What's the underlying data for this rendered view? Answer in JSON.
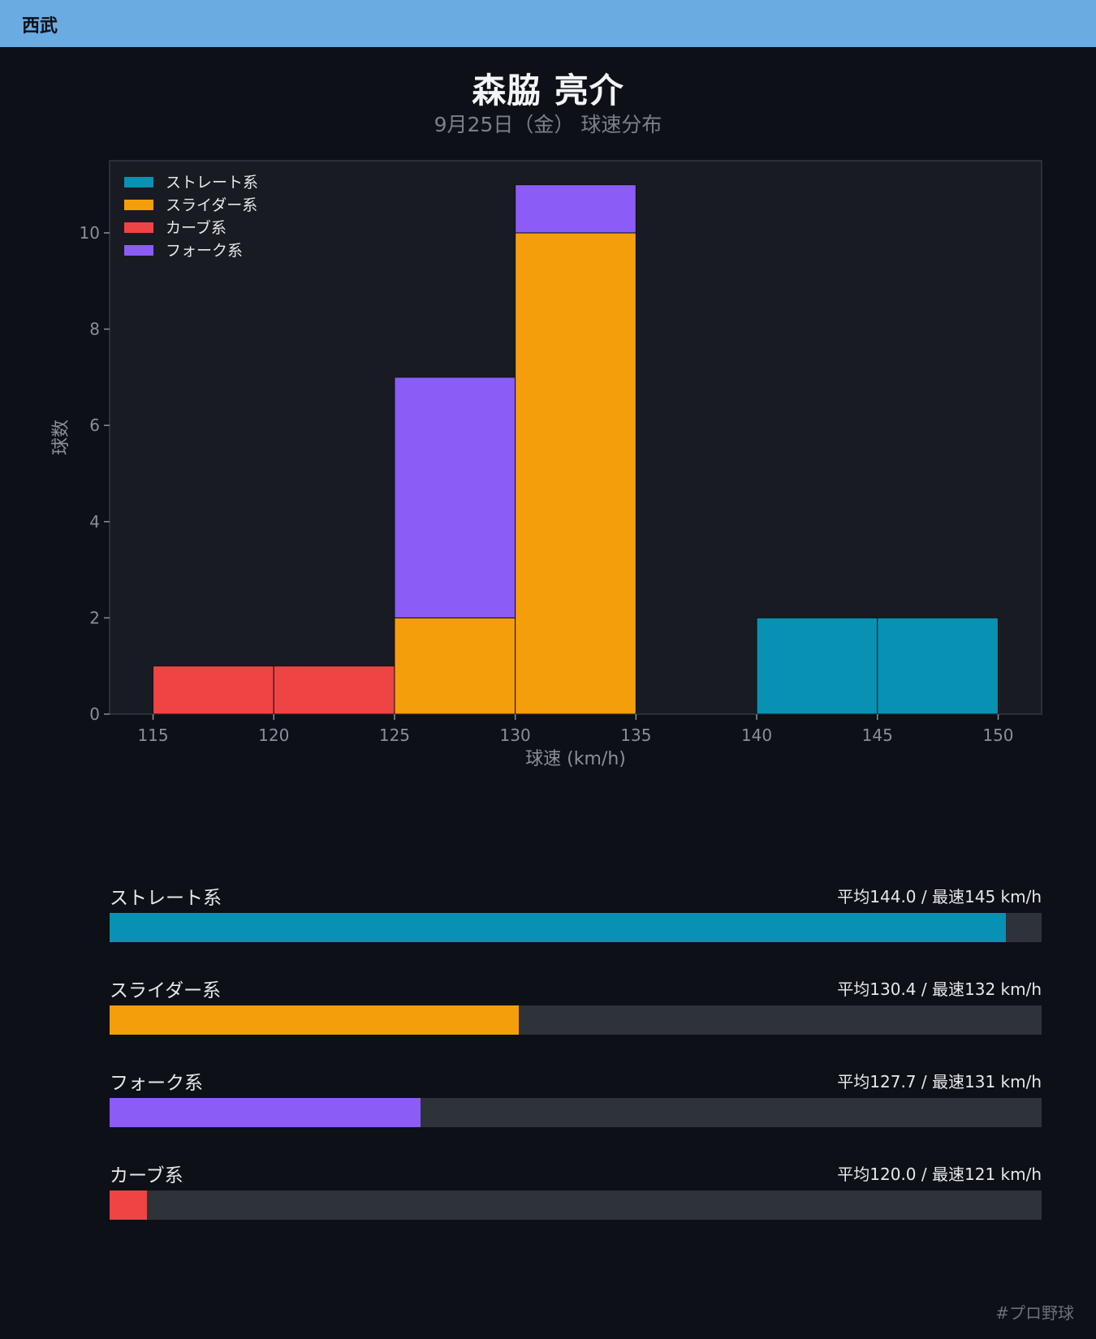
{
  "header": {
    "team": "西武"
  },
  "title": "森脇 亮介",
  "subtitle": "9月25日（金） 球速分布",
  "colors": {
    "straight": "#0891b2",
    "slider": "#f59e0b",
    "curve": "#ef4444",
    "fork": "#8b5cf6",
    "plot_bg": "#181b22",
    "page_bg": "#0d1017",
    "track": "#2e3239",
    "header": "#6aabe2"
  },
  "chart_data": {
    "type": "bar",
    "stacked": true,
    "title": "",
    "xlabel": "球速 (km/h)",
    "ylabel": "球数",
    "xlim": [
      113.2,
      151.8
    ],
    "ylim": [
      0,
      11.5
    ],
    "xticks": [
      115,
      120,
      125,
      130,
      135,
      140,
      145,
      150
    ],
    "yticks": [
      0,
      2,
      4,
      6,
      8,
      10
    ],
    "bins": [
      [
        115,
        120
      ],
      [
        120,
        125
      ],
      [
        125,
        130
      ],
      [
        130,
        135
      ],
      [
        135,
        140
      ],
      [
        140,
        145
      ],
      [
        145,
        150
      ]
    ],
    "legend_position": "top-left",
    "series": [
      {
        "name": "ストレート系",
        "color": "#0891b2",
        "values": [
          0,
          0,
          0,
          0,
          0,
          2,
          2
        ]
      },
      {
        "name": "スライダー系",
        "color": "#f59e0b",
        "values": [
          0,
          0,
          2,
          10,
          0,
          0,
          0
        ]
      },
      {
        "name": "カーブ系",
        "color": "#ef4444",
        "values": [
          1,
          1,
          0,
          0,
          0,
          0,
          0
        ]
      },
      {
        "name": "フォーク系",
        "color": "#8b5cf6",
        "values": [
          0,
          0,
          5,
          1,
          0,
          0,
          0
        ]
      }
    ],
    "legend_order": [
      "ストレート系",
      "スライダー系",
      "カーブ系",
      "フォーク系"
    ]
  },
  "pitch_types": [
    {
      "name": "ストレート系",
      "stats": "平均144.0 / 最速145 km/h",
      "share": 0.962,
      "color": "#0891b2"
    },
    {
      "name": "スライダー系",
      "stats": "平均130.4 / 最速132 km/h",
      "share": 0.439,
      "color": "#f59e0b"
    },
    {
      "name": "フォーク系",
      "stats": "平均127.7 / 最速131 km/h",
      "share": 0.334,
      "color": "#8b5cf6"
    },
    {
      "name": "カーブ系",
      "stats": "平均120.0 / 最速121 km/h",
      "share": 0.04,
      "color": "#ef4444"
    }
  ],
  "footer": {
    "hashtag": "#プロ野球"
  }
}
